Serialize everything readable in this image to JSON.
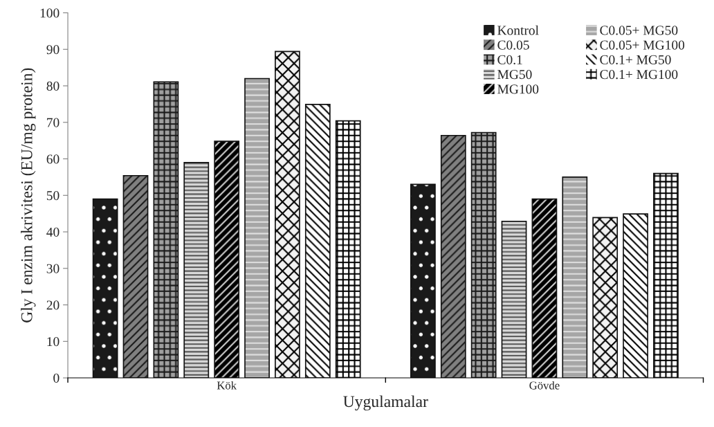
{
  "chart_data": {
    "type": "bar",
    "xlabel": "Uygulamalar",
    "ylabel": "Gly I enzim akrivitesi (EU/mg protein)",
    "categories": [
      "Kök",
      "Gövde"
    ],
    "series": [
      {
        "name": "Kontrol",
        "color": "#1a1a1a",
        "values": [
          49,
          53
        ]
      },
      {
        "name": "C0.05",
        "color": "#808080",
        "values": [
          55.4,
          66.4
        ]
      },
      {
        "name": "C0.1",
        "color": "#a0a0a0",
        "values": [
          81.1,
          67.2
        ]
      },
      {
        "name": "MG50",
        "color": "#d9d9d9",
        "values": [
          59,
          42.9
        ]
      },
      {
        "name": "MG100",
        "color": "#000000",
        "values": [
          64.8,
          49
        ]
      },
      {
        "name": "C0.05+ MG50",
        "color": "#a6a6a6",
        "values": [
          82,
          55
        ]
      },
      {
        "name": "C0.05+ MG100",
        "color": "#f2f2f2",
        "values": [
          89.4,
          43.9
        ]
      },
      {
        "name": "C0.1+ MG50",
        "color": "#ffffff",
        "values": [
          74.9,
          44.9
        ]
      },
      {
        "name": "C0.1+ MG100",
        "color": "#ffffff",
        "values": [
          70.4,
          56
        ]
      }
    ],
    "ylim": [
      0,
      100
    ],
    "yticks": [
      0,
      10,
      20,
      30,
      40,
      50,
      60,
      70,
      80,
      90,
      100
    ],
    "grid": false,
    "legend": "top right"
  }
}
